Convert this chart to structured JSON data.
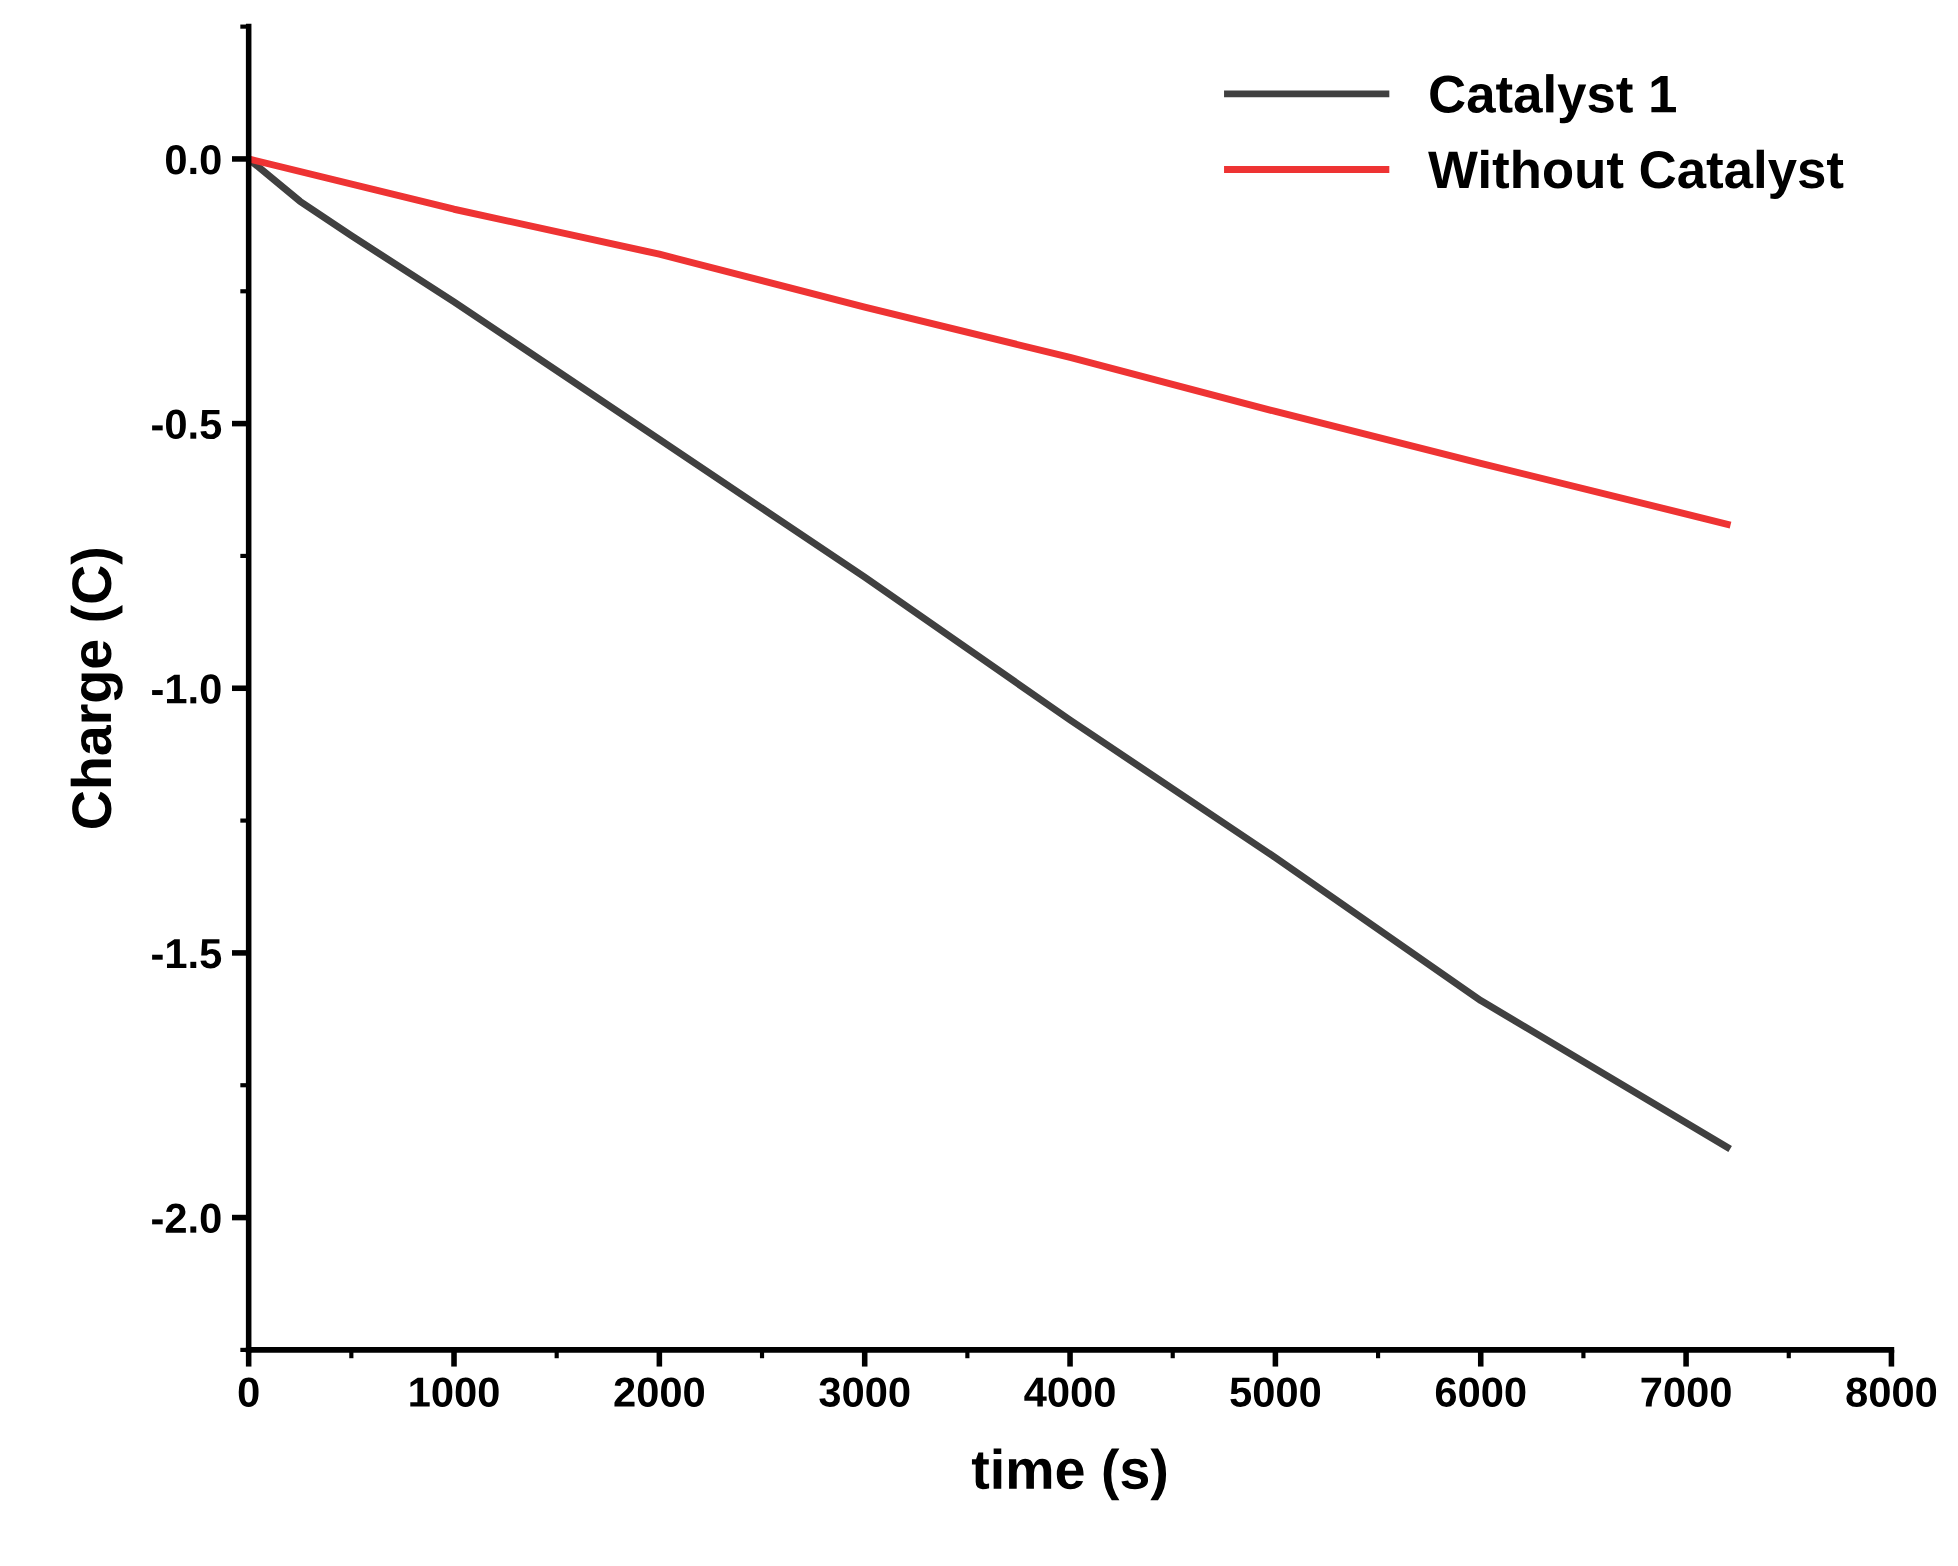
{
  "chart_data": {
    "type": "line",
    "xlabel": "time (s)",
    "ylabel": "Charge (C)",
    "xlim": [
      0,
      8000
    ],
    "xticks": [
      0,
      1000,
      2000,
      3000,
      4000,
      5000,
      6000,
      7000,
      8000
    ],
    "ylim": [
      -2.25,
      0.25
    ],
    "yticks": [
      {
        "value": 0,
        "label": "0.0"
      },
      {
        "value": -0.5,
        "label": "-0.5"
      },
      {
        "value": -1.0,
        "label": "-1.0"
      },
      {
        "value": -1.5,
        "label": "-1.5"
      },
      {
        "value": -2.0,
        "label": "-2.0"
      }
    ],
    "grid": false,
    "legend": "top right",
    "marker": "none",
    "line_style": "solid",
    "series": [
      {
        "name": "Catalyst 1",
        "color": "#404040",
        "x": [
          0,
          250,
          500,
          1000,
          2000,
          3000,
          4000,
          5000,
          6000,
          7200
        ],
        "values": [
          0,
          -0.08,
          -0.145,
          -0.27,
          -0.53,
          -0.79,
          -1.06,
          -1.32,
          -1.59,
          -1.867
        ]
      },
      {
        "name": "Without Catalyst",
        "color": "#ee3333",
        "x": [
          0,
          1000,
          2000,
          3000,
          4000,
          5000,
          6000,
          7200
        ],
        "values": [
          0,
          -0.095,
          -0.18,
          -0.28,
          -0.375,
          -0.477,
          -0.575,
          -0.69
        ]
      }
    ]
  }
}
